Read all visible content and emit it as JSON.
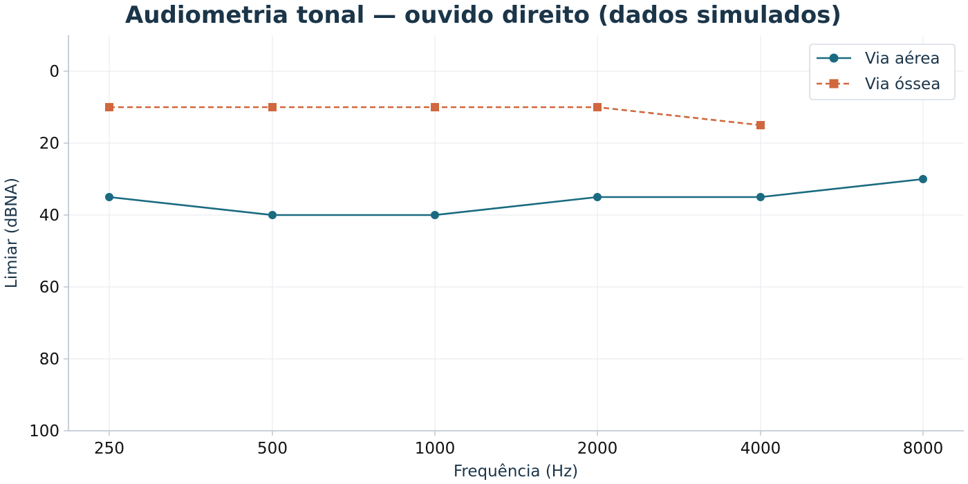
{
  "chart_data": {
    "type": "line",
    "title": "Audiometria tonal — ouvido direito (dados simulados)",
    "xlabel": "Frequência (Hz)",
    "ylabel": "Limiar (dBNA)",
    "categories": [
      "250",
      "500",
      "1000",
      "2000",
      "4000",
      "8000"
    ],
    "ylim": [
      100,
      -10
    ],
    "y_inverted": true,
    "yticks": [
      "0",
      "20",
      "40",
      "60",
      "80",
      "100"
    ],
    "grid": true,
    "legend_position": "top-right",
    "series": [
      {
        "name": "Via aérea",
        "values": [
          35,
          40,
          40,
          35,
          35,
          30
        ],
        "color": "#1a6b80",
        "marker": "circle",
        "line_style": "solid"
      },
      {
        "name": "Via óssea",
        "values": [
          10,
          10,
          10,
          10,
          15,
          null
        ],
        "color": "#d0673e",
        "marker": "square",
        "line_style": "dashed"
      }
    ]
  }
}
